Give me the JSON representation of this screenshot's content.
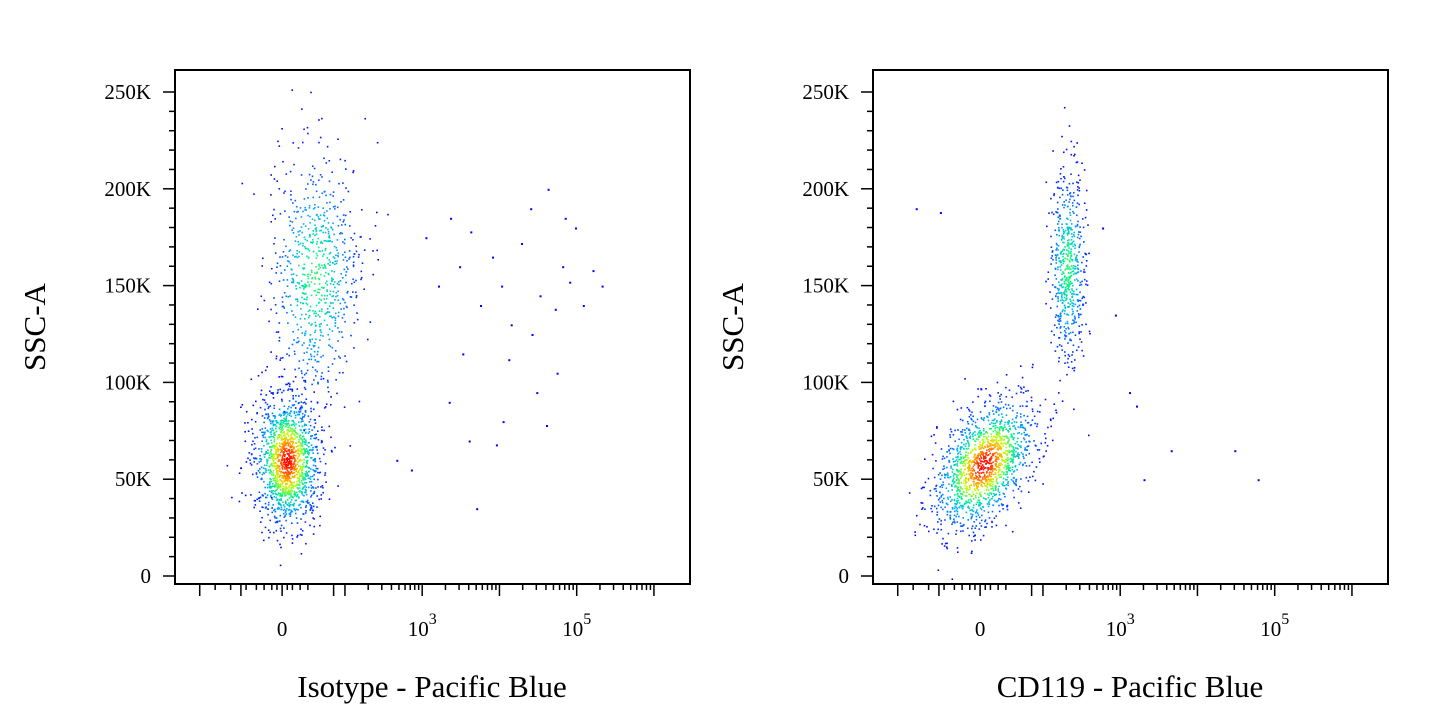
{
  "chart_data": [
    {
      "type": "scatter",
      "subtype": "flow-cytometry density dot plot",
      "xlabel": "Isotype - Pacific Blue",
      "ylabel": "SSC-A",
      "xscale": "biexponential",
      "xlim": [
        -2000,
        262144
      ],
      "ylim": [
        0,
        262144
      ],
      "x_tick_labels": [
        "0",
        "10^3",
        "10^5"
      ],
      "x_tick_values": [
        0,
        1000,
        100000
      ],
      "y_tick_labels": [
        "0",
        "50K",
        "100K",
        "150K",
        "200K",
        "250K"
      ],
      "y_tick_values": [
        0,
        50000,
        100000,
        150000,
        200000,
        250000
      ],
      "color_scale": [
        "#0000ff",
        "#00c8ff",
        "#00ff66",
        "#ffff00",
        "#ff0000"
      ],
      "populations": [
        {
          "name": "",
          "x_center": 20,
          "y_center": 60000,
          "count": 9000,
          "density": "high"
        },
        {
          "name": "",
          "x_center": 120,
          "y_center": 155000,
          "count": 4500,
          "density": "medium"
        }
      ],
      "outlier_points": [
        [
          1100,
          175000
        ],
        [
          1600,
          150000
        ],
        [
          2300,
          185000
        ],
        [
          3000,
          160000
        ],
        [
          4200,
          178000
        ],
        [
          5600,
          140000
        ],
        [
          8000,
          165000
        ],
        [
          10500,
          150000
        ],
        [
          14000,
          130000
        ],
        [
          19000,
          172000
        ],
        [
          25000,
          190000
        ],
        [
          33000,
          145000
        ],
        [
          42000,
          200000
        ],
        [
          52000,
          138000
        ],
        [
          65000,
          160000
        ],
        [
          80000,
          152000
        ],
        [
          95000,
          180000
        ],
        [
          120000,
          140000
        ],
        [
          160000,
          158000
        ],
        [
          210000,
          150000
        ],
        [
          3300,
          115000
        ],
        [
          2200,
          90000
        ],
        [
          4000,
          70000
        ],
        [
          11000,
          80000
        ],
        [
          9000,
          68000
        ],
        [
          30000,
          95000
        ],
        [
          40000,
          78000
        ],
        [
          600,
          60000
        ],
        [
          800,
          55000
        ],
        [
          5000,
          35000
        ],
        [
          55000,
          105000
        ],
        [
          26000,
          125000
        ],
        [
          13000,
          112000
        ],
        [
          70000,
          185000
        ]
      ]
    },
    {
      "type": "scatter",
      "subtype": "flow-cytometry density dot plot",
      "xlabel": "CD119 - Pacific Blue",
      "ylabel": "SSC-A",
      "xscale": "biexponential",
      "xlim": [
        -2000,
        262144
      ],
      "ylim": [
        0,
        262144
      ],
      "x_tick_labels": [
        "0",
        "10^3",
        "10^5"
      ],
      "x_tick_values": [
        0,
        1000,
        100000
      ],
      "y_tick_labels": [
        "0",
        "50K",
        "100K",
        "150K",
        "200K",
        "250K"
      ],
      "y_tick_values": [
        0,
        50000,
        100000,
        150000,
        200000,
        250000
      ],
      "color_scale": [
        "#0000ff",
        "#00c8ff",
        "#00ff66",
        "#ffff00",
        "#ff0000"
      ],
      "populations": [
        {
          "name": "",
          "x_center": 15,
          "y_center": 58000,
          "count": 9000,
          "density": "high"
        },
        {
          "name": "",
          "x_center": 350,
          "y_center": 160000,
          "count": 3500,
          "density": "medium"
        }
      ],
      "outlier_points": [
        [
          4500,
          65000
        ],
        [
          30000,
          65000
        ],
        [
          60000,
          50000
        ],
        [
          2000,
          50000
        ],
        [
          1300,
          95000
        ],
        [
          1600,
          88000
        ],
        [
          900,
          135000
        ],
        [
          700,
          180000
        ],
        [
          -400,
          190000
        ],
        [
          -250,
          188000
        ]
      ]
    }
  ]
}
